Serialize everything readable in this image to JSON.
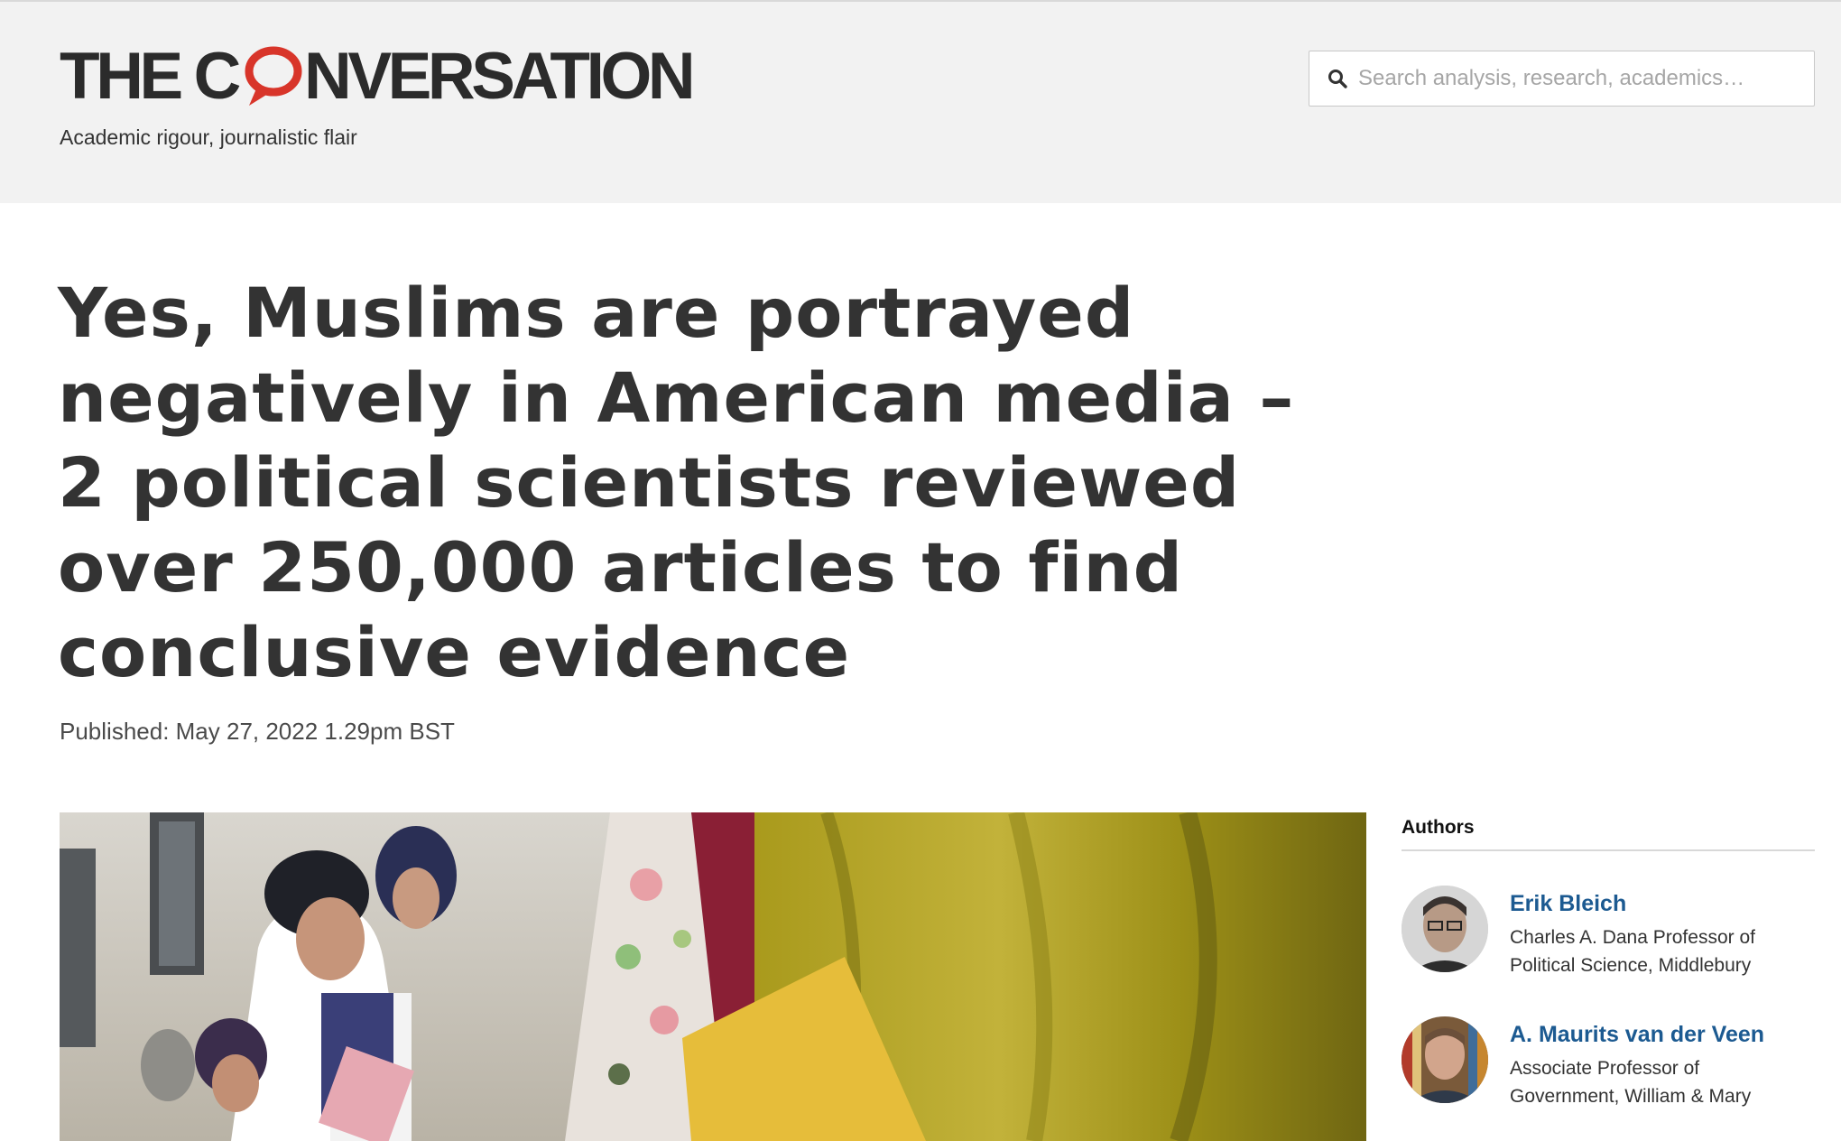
{
  "header": {
    "logo_left": "THE C",
    "logo_right": "NVERSATION",
    "tagline": "Academic rigour, journalistic flair",
    "search_placeholder": "Search analysis, research, academics…"
  },
  "article": {
    "title": "Yes, Muslims are portrayed negatively in American media – 2 political scientists reviewed over 250,000 articles to find conclusive evidence",
    "published": "Published: May 27, 2022 1.29pm BST"
  },
  "sidebar": {
    "heading": "Authors",
    "authors": [
      {
        "name": "Erik Bleich",
        "role": "Charles A. Dana Professor of Political Science, Middlebury"
      },
      {
        "name": "A. Maurits van der Veen",
        "role": "Associate Professor of Government, William & Mary"
      }
    ]
  },
  "colors": {
    "header_bg": "#f2f2f2",
    "logo_bubble": "#d8352a",
    "author_link": "#1c5a91",
    "text": "#333333"
  },
  "icons": {
    "search": "search-icon",
    "logo_mark": "speech-bubble-icon"
  }
}
